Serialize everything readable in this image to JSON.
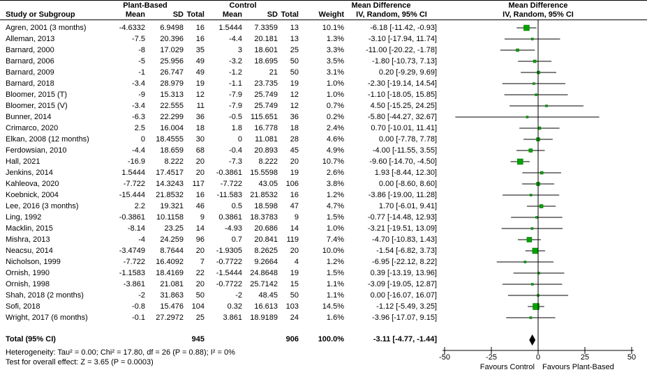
{
  "header": {
    "group1": "Plant-Based",
    "group2": "Control",
    "md_text_line1": "Mean Difference",
    "md_text_line2": "IV, Random, 95% CI",
    "md_plot_line1": "Mean Difference",
    "md_plot_line2": "IV, Random, 95% CI",
    "col_study": "Study or Subgroup",
    "col_mean1": "Mean",
    "col_sd1": "SD",
    "col_total1": "Total",
    "col_mean2": "Mean",
    "col_sd2": "SD",
    "col_total2": "Total",
    "col_weight": "Weight"
  },
  "chart_data": {
    "type": "forest",
    "effect_measure": "Mean Difference, IV, Random, 95% CI",
    "axis": {
      "xlim": [
        -50,
        50
      ],
      "ticks": [
        -50,
        -25,
        0,
        25,
        50
      ],
      "left_label": "Favours Control",
      "right_label": "Favours Plant-Based"
    },
    "studies": [
      {
        "name": "Agren, 2001 (3 months)",
        "mean1": "-4.6332",
        "sd1": "6.9498",
        "n1": "16",
        "mean2": "1.5444",
        "sd2": "7.3359",
        "n2": "13",
        "weight": "10.1%",
        "ci": "-6.18 [-11.42, -0.93]",
        "md": -6.18,
        "lo": -11.42,
        "hi": -0.93
      },
      {
        "name": "Alleman, 2013",
        "mean1": "-7.5",
        "sd1": "20.396",
        "n1": "16",
        "mean2": "-4.4",
        "sd2": "20.181",
        "n2": "13",
        "weight": "1.3%",
        "ci": "-3.10 [-17.94, 11.74]",
        "md": -3.1,
        "lo": -17.94,
        "hi": 11.74
      },
      {
        "name": "Barnard, 2000",
        "mean1": "-8",
        "sd1": "17.029",
        "n1": "35",
        "mean2": "3",
        "sd2": "18.601",
        "n2": "25",
        "weight": "3.3%",
        "ci": "-11.00 [-20.22, -1.78]",
        "md": -11.0,
        "lo": -20.22,
        "hi": -1.78
      },
      {
        "name": "Barnard, 2006",
        "mean1": "-5",
        "sd1": "25.956",
        "n1": "49",
        "mean2": "-3.2",
        "sd2": "18.695",
        "n2": "50",
        "weight": "3.5%",
        "ci": "-1.80 [-10.73, 7.13]",
        "md": -1.8,
        "lo": -10.73,
        "hi": 7.13
      },
      {
        "name": "Barnard, 2009",
        "mean1": "-1",
        "sd1": "26.747",
        "n1": "49",
        "mean2": "-1.2",
        "sd2": "21",
        "n2": "50",
        "weight": "3.1%",
        "ci": "0.20 [-9.29, 9.69]",
        "md": 0.2,
        "lo": -9.29,
        "hi": 9.69
      },
      {
        "name": "Barnard, 2018",
        "mean1": "-3.4",
        "sd1": "28.979",
        "n1": "19",
        "mean2": "-1.1",
        "sd2": "23.735",
        "n2": "19",
        "weight": "1.0%",
        "ci": "-2.30 [-19.14, 14.54]",
        "md": -2.3,
        "lo": -19.14,
        "hi": 14.54
      },
      {
        "name": "Bloomer, 2015 (T)",
        "mean1": "-9",
        "sd1": "15.313",
        "n1": "12",
        "mean2": "-7.9",
        "sd2": "25.749",
        "n2": "12",
        "weight": "1.0%",
        "ci": "-1.10 [-18.05, 15.85]",
        "md": -1.1,
        "lo": -18.05,
        "hi": 15.85
      },
      {
        "name": "Bloomer, 2015 (V)",
        "mean1": "-3.4",
        "sd1": "22.555",
        "n1": "11",
        "mean2": "-7.9",
        "sd2": "25.749",
        "n2": "12",
        "weight": "0.7%",
        "ci": "4.50 [-15.25, 24.25]",
        "md": 4.5,
        "lo": -15.25,
        "hi": 24.25
      },
      {
        "name": "Bunner, 2014",
        "mean1": "-6.3",
        "sd1": "22.299",
        "n1": "36",
        "mean2": "-0.5",
        "sd2": "115.651",
        "n2": "36",
        "weight": "0.2%",
        "ci": "-5.80 [-44.27, 32.67]",
        "md": -5.8,
        "lo": -44.27,
        "hi": 32.67
      },
      {
        "name": "Crimarco, 2020",
        "mean1": "2.5",
        "sd1": "16.004",
        "n1": "18",
        "mean2": "1.8",
        "sd2": "16.778",
        "n2": "18",
        "weight": "2.4%",
        "ci": "0.70 [-10.01, 11.41]",
        "md": 0.7,
        "lo": -10.01,
        "hi": 11.41
      },
      {
        "name": "Elkan, 2008 (12 months)",
        "mean1": "0",
        "sd1": "18.4555",
        "n1": "30",
        "mean2": "0",
        "sd2": "11.081",
        "n2": "28",
        "weight": "4.6%",
        "ci": "0.00 [-7.78, 7.78]",
        "md": 0.0,
        "lo": -7.78,
        "hi": 7.78
      },
      {
        "name": "Ferdowsian, 2010",
        "mean1": "-4.4",
        "sd1": "18.659",
        "n1": "68",
        "mean2": "-0.4",
        "sd2": "20.893",
        "n2": "45",
        "weight": "4.9%",
        "ci": "-4.00 [-11.55, 3.55]",
        "md": -4.0,
        "lo": -11.55,
        "hi": 3.55
      },
      {
        "name": "Hall, 2021",
        "mean1": "-16.9",
        "sd1": "8.222",
        "n1": "20",
        "mean2": "-7.3",
        "sd2": "8.222",
        "n2": "20",
        "weight": "10.7%",
        "ci": "-9.60 [-14.70, -4.50]",
        "md": -9.6,
        "lo": -14.7,
        "hi": -4.5
      },
      {
        "name": "Jenkins, 2014",
        "mean1": "1.5444",
        "sd1": "17.4517",
        "n1": "20",
        "mean2": "-0.3861",
        "sd2": "15.5598",
        "n2": "19",
        "weight": "2.6%",
        "ci": "1.93 [-8.44, 12.30]",
        "md": 1.93,
        "lo": -8.44,
        "hi": 12.3
      },
      {
        "name": "Kahleova, 2020",
        "mean1": "-7.722",
        "sd1": "14.3243",
        "n1": "117",
        "mean2": "-7.722",
        "sd2": "43.05",
        "n2": "106",
        "weight": "3.8%",
        "ci": "0.00 [-8.60, 8.60]",
        "md": 0.0,
        "lo": -8.6,
        "hi": 8.6
      },
      {
        "name": "Koebnick, 2004",
        "mean1": "-15.444",
        "sd1": "21.8532",
        "n1": "16",
        "mean2": "-11.583",
        "sd2": "21.8532",
        "n2": "16",
        "weight": "1.2%",
        "ci": "-3.86 [-19.00, 11.28]",
        "md": -3.86,
        "lo": -19.0,
        "hi": 11.28
      },
      {
        "name": "Lee, 2016 (3 months)",
        "mean1": "2.2",
        "sd1": "19.321",
        "n1": "46",
        "mean2": "0.5",
        "sd2": "18.598",
        "n2": "47",
        "weight": "4.7%",
        "ci": "1.70 [-6.01, 9.41]",
        "md": 1.7,
        "lo": -6.01,
        "hi": 9.41
      },
      {
        "name": "Ling, 1992",
        "mean1": "-0.3861",
        "sd1": "10.1158",
        "n1": "9",
        "mean2": "0.3861",
        "sd2": "18.3783",
        "n2": "9",
        "weight": "1.5%",
        "ci": "-0.77 [-14.48, 12.93]",
        "md": -0.77,
        "lo": -14.48,
        "hi": 12.93
      },
      {
        "name": "Macklin, 2015",
        "mean1": "-8.14",
        "sd1": "23.25",
        "n1": "14",
        "mean2": "-4.93",
        "sd2": "20.686",
        "n2": "14",
        "weight": "1.0%",
        "ci": "-3.21 [-19.51, 13.09]",
        "md": -3.21,
        "lo": -19.51,
        "hi": 13.09
      },
      {
        "name": "Mishra, 2013",
        "mean1": "-4",
        "sd1": "24.259",
        "n1": "96",
        "mean2": "0.7",
        "sd2": "20.841",
        "n2": "119",
        "weight": "7.4%",
        "ci": "-4.70 [-10.83, 1.43]",
        "md": -4.7,
        "lo": -10.83,
        "hi": 1.43
      },
      {
        "name": "Neacsu, 2014",
        "mean1": "-3.4749",
        "sd1": "8.7644",
        "n1": "20",
        "mean2": "-1.9305",
        "sd2": "8.2625",
        "n2": "20",
        "weight": "10.0%",
        "ci": "-1.54 [-6.82, 3.73]",
        "md": -1.54,
        "lo": -6.82,
        "hi": 3.73
      },
      {
        "name": "Nicholson, 1999",
        "mean1": "-7.722",
        "sd1": "16.4092",
        "n1": "7",
        "mean2": "-0.7722",
        "sd2": "9.2664",
        "n2": "4",
        "weight": "1.2%",
        "ci": "-6.95 [-22.12, 8.22]",
        "md": -6.95,
        "lo": -22.12,
        "hi": 8.22
      },
      {
        "name": "Ornish, 1990",
        "mean1": "-1.1583",
        "sd1": "18.4169",
        "n1": "22",
        "mean2": "-1.5444",
        "sd2": "24.8648",
        "n2": "19",
        "weight": "1.5%",
        "ci": "0.39 [-13.19, 13.96]",
        "md": 0.39,
        "lo": -13.19,
        "hi": 13.96
      },
      {
        "name": "Ornish, 1998",
        "mean1": "-3.861",
        "sd1": "21.081",
        "n1": "20",
        "mean2": "-0.7722",
        "sd2": "25.7142",
        "n2": "15",
        "weight": "1.1%",
        "ci": "-3.09 [-19.05, 12.87]",
        "md": -3.09,
        "lo": -19.05,
        "hi": 12.87
      },
      {
        "name": "Shah, 2018 (2 months)",
        "mean1": "-2",
        "sd1": "31.863",
        "n1": "50",
        "mean2": "-2",
        "sd2": "48.45",
        "n2": "50",
        "weight": "1.1%",
        "ci": "0.00 [-16.07, 16.07]",
        "md": 0.0,
        "lo": -16.07,
        "hi": 16.07
      },
      {
        "name": "Sofi, 2018",
        "mean1": "-0.8",
        "sd1": "15.476",
        "n1": "104",
        "mean2": "0.32",
        "sd2": "16.613",
        "n2": "103",
        "weight": "14.5%",
        "ci": "-1.12 [-5.49, 3.25]",
        "md": -1.12,
        "lo": -5.49,
        "hi": 3.25
      },
      {
        "name": "Wright, 2017 (6 months)",
        "mean1": "-0.1",
        "sd1": "27.2972",
        "n1": "25",
        "mean2": "3.861",
        "sd2": "18.9189",
        "n2": "24",
        "weight": "1.6%",
        "ci": "-3.96 [-17.07, 9.15]",
        "md": -3.96,
        "lo": -17.07,
        "hi": 9.15
      }
    ],
    "total": {
      "label": "Total (95% CI)",
      "n1": "945",
      "n2": "906",
      "weight": "100.0%",
      "ci": "-3.11 [-4.77, -1.44]",
      "md": -3.11,
      "lo": -4.77,
      "hi": -1.44
    },
    "heterogeneity": "Heterogeneity: Tau² = 0.00; Chi² = 17.80, df = 26 (P = 0.88); I² = 0%",
    "overall_effect": "Test for overall effect: Z = 3.65 (P = 0.0003)"
  },
  "colors": {
    "marker_fill": "#00a400",
    "marker_border": "#006400",
    "line": "#000000",
    "diamond": "#000000"
  }
}
